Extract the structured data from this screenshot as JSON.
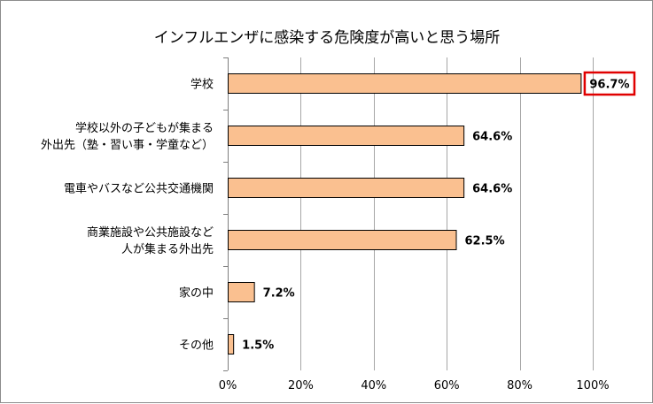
{
  "chart_data": {
    "type": "bar",
    "orientation": "horizontal",
    "title": "インフルエンザに感染する危険度が高いと思う場所",
    "categories": [
      [
        "学校"
      ],
      [
        "学校以外の子どもが集まる",
        "外出先（塾・習い事・学童など）"
      ],
      [
        "電車やバスなど公共交通機関"
      ],
      [
        "商業施設や公共施設など",
        "人が集まる外出先"
      ],
      [
        "家の中"
      ],
      [
        "その他"
      ]
    ],
    "values": [
      96.7,
      64.6,
      64.6,
      62.5,
      7.2,
      1.5
    ],
    "value_labels": [
      "96.7%",
      "64.6%",
      "64.6%",
      "62.5%",
      "7.2%",
      "1.5%"
    ],
    "highlighted_index": 0,
    "xlim": [
      0,
      100
    ],
    "xticks": [
      0,
      20,
      40,
      60,
      80,
      100
    ],
    "xtick_labels": [
      "0%",
      "20%",
      "40%",
      "60%",
      "80%",
      "100%"
    ],
    "grid": true,
    "legend": "none",
    "colors": {
      "bar_fill": "#fac090",
      "bar_stroke": "#000000",
      "highlight_box": "#e00000",
      "grid": "#a6a6a6",
      "frame": "#8c8c8c"
    }
  }
}
